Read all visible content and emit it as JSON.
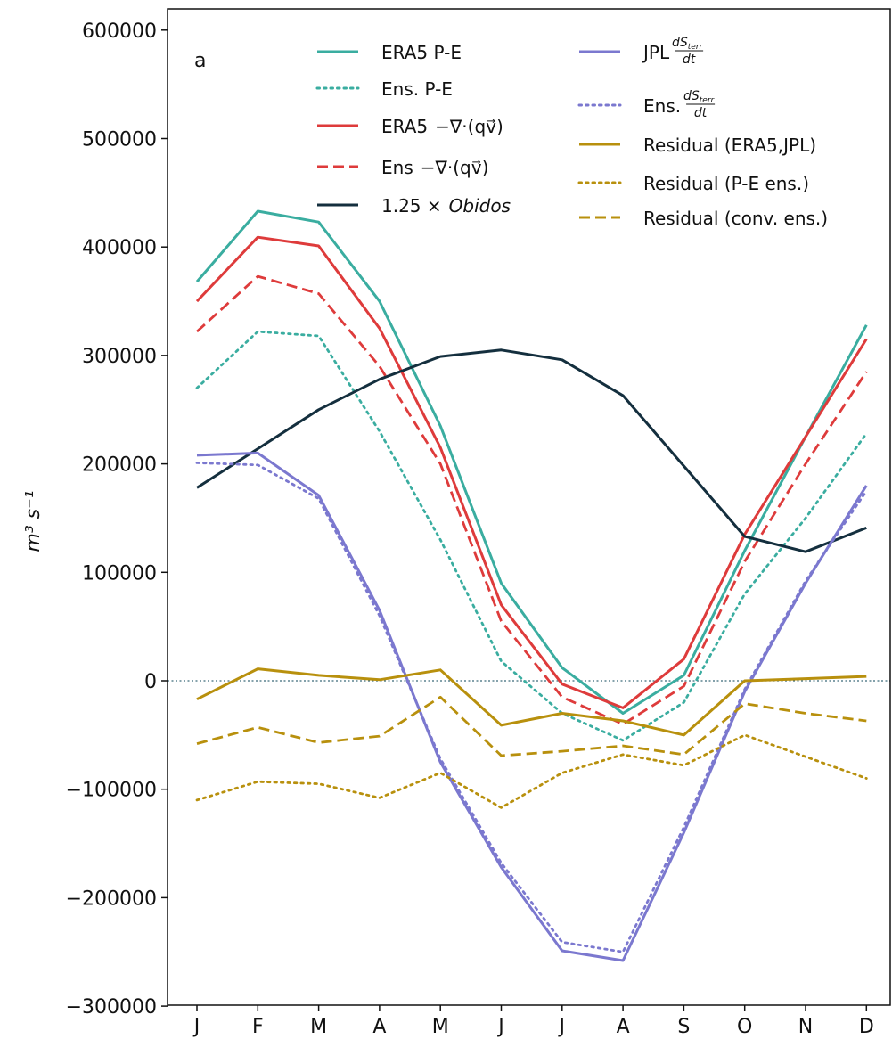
{
  "chart_data": {
    "type": "line",
    "panel_label": "a",
    "ylabel": "m³ s⁻¹",
    "categories": [
      "J",
      "F",
      "M",
      "A",
      "M",
      "J",
      "J",
      "A",
      "S",
      "O",
      "N",
      "D"
    ],
    "ylim": [
      -300000,
      620000
    ],
    "yticks": [
      600000,
      500000,
      400000,
      300000,
      200000,
      100000,
      0,
      -100000,
      -200000,
      -300000
    ],
    "ytick_labels": [
      "600000",
      "500000",
      "400000",
      "300000",
      "200000",
      "100000",
      "0",
      "−100000",
      "−200000",
      "−300000"
    ],
    "zero_line": true,
    "legend_placement": "top",
    "colors": {
      "teal": "#3aada0",
      "red": "#de3b3b",
      "navy": "#142f3e",
      "purple": "#7b78cf",
      "gold": "#b8900d"
    },
    "series": [
      {
        "name": "ERA5 P-E",
        "color": "#3aada0",
        "style": "solid",
        "values": [
          368000,
          433000,
          423000,
          350000,
          235000,
          90000,
          12000,
          -30000,
          5000,
          120000,
          225000,
          328000
        ]
      },
      {
        "name": "Ens. P-E",
        "color": "#3aada0",
        "style": "dotted",
        "values": [
          270000,
          322000,
          318000,
          230000,
          130000,
          18000,
          -30000,
          -55000,
          -20000,
          80000,
          150000,
          228000
        ]
      },
      {
        "name": "ERA5 −∇·(qv⃗)",
        "color": "#de3b3b",
        "style": "solid",
        "values": [
          350000,
          409000,
          401000,
          325000,
          215000,
          70000,
          -3000,
          -25000,
          20000,
          135000,
          225000,
          315000
        ]
      },
      {
        "name": "Ens −∇·(qv⃗)",
        "color": "#de3b3b",
        "style": "dashed",
        "values": [
          322000,
          373000,
          357000,
          290000,
          200000,
          55000,
          -15000,
          -40000,
          -5000,
          110000,
          200000,
          285000
        ]
      },
      {
        "name": "1.25 × Obidos",
        "color": "#142f3e",
        "style": "solid",
        "values": [
          178000,
          214000,
          250000,
          278000,
          299000,
          305000,
          296000,
          263000,
          198000,
          133000,
          119000,
          141000
        ]
      },
      {
        "name": "JPL dS_terr/dt",
        "color": "#7b78cf",
        "style": "solid",
        "values": [
          208000,
          210000,
          171000,
          65000,
          -75000,
          -172000,
          -249000,
          -258000,
          -140000,
          -10000,
          90000,
          180000
        ]
      },
      {
        "name": "Ens. dS_terr/dt",
        "color": "#7b78cf",
        "style": "dotted",
        "values": [
          201000,
          199000,
          168000,
          60000,
          -72000,
          -168000,
          -241000,
          -250000,
          -135000,
          -8000,
          92000,
          175000
        ]
      },
      {
        "name": "Residual (ERA5,JPL)",
        "color": "#b8900d",
        "style": "solid",
        "values": [
          -17000,
          11000,
          5000,
          1000,
          10000,
          -41000,
          -30000,
          -37000,
          -50000,
          0,
          2000,
          4000
        ]
      },
      {
        "name": "Residual (P-E ens.)",
        "color": "#b8900d",
        "style": "dotted",
        "values": [
          -110000,
          -93000,
          -95000,
          -108000,
          -85000,
          -117000,
          -85000,
          -68000,
          -78000,
          -50000,
          -70000,
          -90000
        ]
      },
      {
        "name": "Residual (conv. ens.)",
        "color": "#b8900d",
        "style": "dashed",
        "values": [
          -58000,
          -43000,
          -57000,
          -51000,
          -15000,
          -69000,
          -65000,
          -60000,
          -68000,
          -21000,
          -30000,
          -37000
        ]
      }
    ],
    "legend": {
      "left": [
        {
          "label": "ERA5 P-E",
          "series": 0
        },
        {
          "label": "Ens. P-E",
          "series": 1
        },
        {
          "label": "ERA5",
          "suffix": "−∇·(qv⃗)",
          "series": 2
        },
        {
          "label": "Ens",
          "suffix": "−∇·(qv⃗)",
          "series": 3
        },
        {
          "label": "1.25 ×",
          "suffix": "Obidos",
          "series": 4
        }
      ],
      "right": [
        {
          "label": "JPL",
          "frac_num": "dS",
          "frac_sub": "terr",
          "frac_den": "dt",
          "series": 5
        },
        {
          "label": "Ens.",
          "frac_num": "dS",
          "frac_sub": "terr",
          "frac_den": "dt",
          "series": 6
        },
        {
          "label": "Residual (ERA5,JPL)",
          "series": 7
        },
        {
          "label": "Residual (P-E ens.)",
          "series": 8
        },
        {
          "label": "Residual (conv. ens.)",
          "series": 9
        }
      ]
    }
  }
}
